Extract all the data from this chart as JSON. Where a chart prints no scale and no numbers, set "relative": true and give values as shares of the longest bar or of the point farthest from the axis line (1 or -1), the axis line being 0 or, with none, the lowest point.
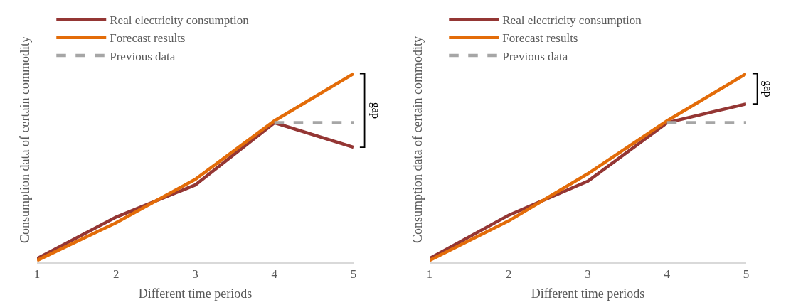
{
  "chart_data": [
    {
      "type": "line",
      "relative": true,
      "xlabel": "Different time periods",
      "ylabel": "Consumption data of certain commodity",
      "x": [
        1,
        2,
        3,
        4,
        5
      ],
      "xlim": [
        1,
        5
      ],
      "xticks": [
        1,
        2,
        3,
        4,
        5
      ],
      "tick_labels": "x",
      "grid": false,
      "legend": "top left",
      "annotations": [
        "gap"
      ],
      "series": [
        {
          "name": "Real electricity consumption",
          "color": "#943634",
          "values": [
            0.02,
            0.24,
            0.41,
            0.74,
            0.61
          ]
        },
        {
          "name": "Forecast results",
          "color": "#e36c09",
          "values": [
            0.01,
            0.21,
            0.44,
            0.75,
            1.0
          ]
        },
        {
          "name": "Previous data",
          "color": "#a6a6a6",
          "line_style": "dashed",
          "values": [
            null,
            null,
            null,
            0.74,
            0.74
          ]
        }
      ]
    },
    {
      "type": "line",
      "relative": true,
      "xlabel": "Different time periods",
      "ylabel": "Consumption data of certain commodity",
      "x": [
        1,
        2,
        3,
        4,
        5
      ],
      "xlim": [
        1,
        5
      ],
      "xticks": [
        1,
        2,
        3,
        4,
        5
      ],
      "tick_labels": "x",
      "grid": false,
      "legend": "top left",
      "annotations": [
        "gap"
      ],
      "series": [
        {
          "name": "Real electricity consumption",
          "color": "#943634",
          "values": [
            0.02,
            0.25,
            0.43,
            0.74,
            0.84
          ]
        },
        {
          "name": "Forecast results",
          "color": "#e36c09",
          "values": [
            0.01,
            0.22,
            0.47,
            0.75,
            1.0
          ]
        },
        {
          "name": "Previous data",
          "color": "#a6a6a6",
          "line_style": "dashed",
          "values": [
            null,
            null,
            null,
            0.74,
            0.74
          ]
        }
      ]
    }
  ]
}
